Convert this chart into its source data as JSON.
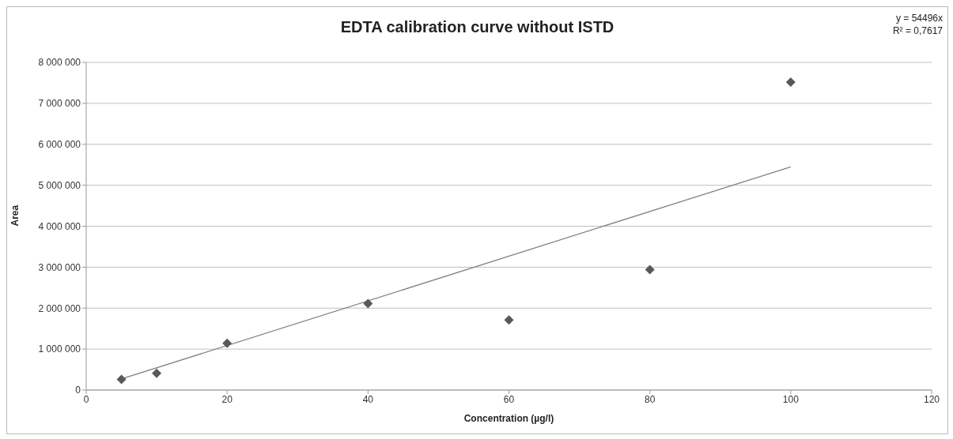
{
  "chart_data": {
    "type": "scatter",
    "title": "EDTA calibration curve without ISTD",
    "xlabel": "Concentration (µg/l)",
    "ylabel": "Area",
    "annotations": [
      "y = 54496x",
      "R² = 0,7617"
    ],
    "series": [
      {
        "color": "#595959",
        "marker": "diamond",
        "x": [
          5,
          10,
          20,
          40,
          60,
          80,
          100
        ],
        "values": [
          260000,
          410000,
          1140000,
          2110000,
          1710000,
          2940000,
          7520000
        ]
      },
      {
        "type": "line",
        "color": "#808080",
        "marker": "none",
        "line_style": "solid",
        "x": [
          5,
          100
        ],
        "values": [
          270000,
          5450000
        ]
      }
    ],
    "xlim": [
      0,
      120
    ],
    "xticks": [
      0,
      20,
      40,
      60,
      80,
      100,
      120
    ],
    "ylim": [
      0,
      8000000
    ],
    "yticks": [
      0,
      {
        "value": 1000000,
        "label": "1 000 000"
      },
      {
        "value": 2000000,
        "label": "2 000 000"
      },
      {
        "value": 3000000,
        "label": "3 000 000"
      },
      {
        "value": 4000000,
        "label": "4 000 000"
      },
      {
        "value": 5000000,
        "label": "5 000 000"
      },
      {
        "value": 6000000,
        "label": "6 000 000"
      },
      {
        "value": 7000000,
        "label": "7 000 000"
      },
      {
        "value": 8000000,
        "label": "8 000 000"
      }
    ],
    "grid": "y",
    "legend": false
  }
}
